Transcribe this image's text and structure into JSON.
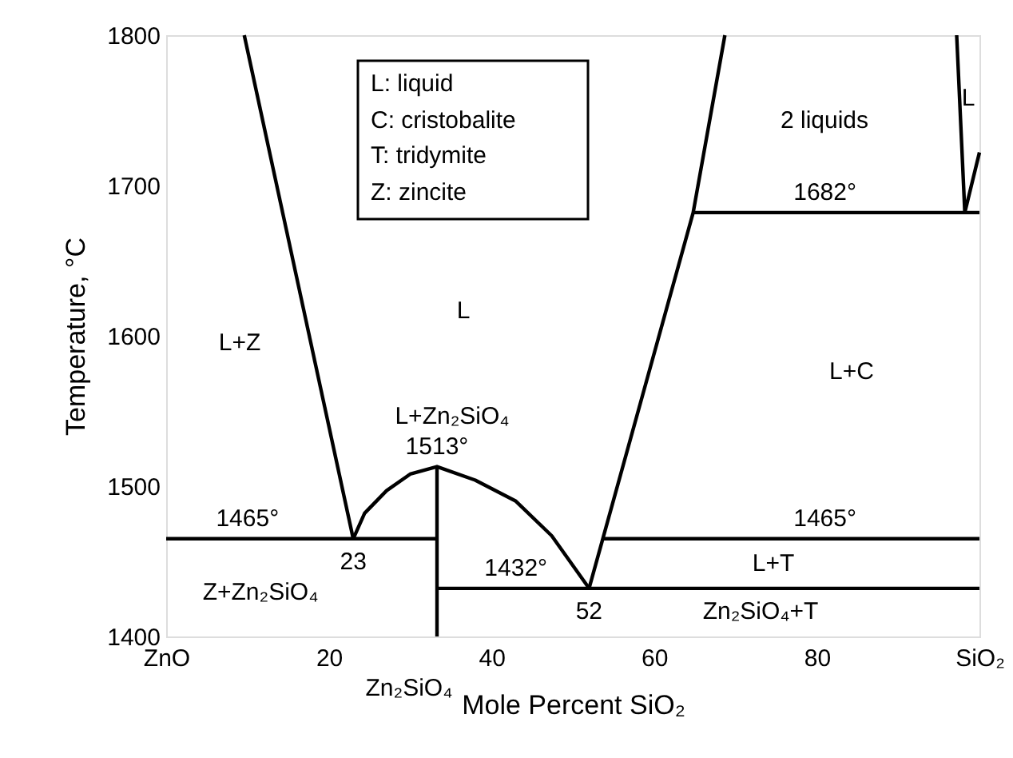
{
  "chart_data": {
    "type": "line",
    "xlabel": "Mole Percent SiO₂",
    "ylabel": "Temperature, °C",
    "xlim": [
      0,
      100
    ],
    "ylim": [
      1400,
      1800
    ],
    "xticks": [
      {
        "value": 0,
        "label": "ZnO"
      },
      20,
      40,
      60,
      80,
      {
        "value": 100,
        "label": "SiO₂"
      }
    ],
    "yticks": [
      1400,
      1500,
      1600,
      1700,
      1800
    ],
    "line_style": "solid",
    "series": [
      {
        "color": "#000000",
        "x": [
          9.6,
          23
        ],
        "values": [
          1800,
          1465
        ]
      },
      {
        "color": "#000000",
        "x": [
          23,
          24.4,
          27.1,
          30,
          33.3,
          38,
          43,
          47.4,
          52
        ],
        "values": [
          1465,
          1482,
          1497,
          1508,
          1513,
          1504,
          1490,
          1467,
          1432
        ]
      },
      {
        "color": "#000000",
        "x": [
          52,
          64.8,
          68.7
        ],
        "values": [
          1432,
          1682,
          1800
        ]
      },
      {
        "color": "#000000",
        "x": [
          97.2,
          98.2,
          100
        ],
        "values": [
          1800,
          1682,
          1722
        ]
      },
      {
        "color": "#000000",
        "x": [
          64.8,
          100
        ],
        "values": [
          1682,
          1682
        ]
      },
      {
        "color": "#000000",
        "x": [
          0,
          33.3
        ],
        "values": [
          1465,
          1465
        ]
      },
      {
        "color": "#000000",
        "x": [
          53.7,
          100
        ],
        "values": [
          1465,
          1465
        ]
      },
      {
        "color": "#000000",
        "x": [
          33.3,
          100
        ],
        "values": [
          1432,
          1432
        ]
      },
      {
        "color": "#000000",
        "x": [
          33.3,
          33.3
        ],
        "values": [
          1400,
          1513
        ]
      }
    ],
    "annotations": [
      "L: liquid",
      "C: cristobalite",
      "T: tridymite",
      "Z: zincite",
      "L",
      "L+Z",
      "2 liquids",
      "L",
      "L+C",
      "L+Zn₂SiO₄",
      "Z+Zn₂SiO₄",
      "L+T",
      "Zn₂SiO₄+T",
      "Zn₂SiO₄",
      {
        "text": "1682°",
        "x": 81,
        "y": 1682
      },
      {
        "text": "1513°",
        "x": 33.3,
        "y": 1513
      },
      {
        "text": "1465°",
        "x": 10,
        "y": 1465
      },
      {
        "text": "23",
        "x": 23,
        "y": 1465
      },
      {
        "text": "1432°",
        "x": 43,
        "y": 1432
      },
      {
        "text": "52",
        "x": 52,
        "y": 1432
      },
      {
        "text": "1465°",
        "x": 81,
        "y": 1465
      }
    ]
  }
}
